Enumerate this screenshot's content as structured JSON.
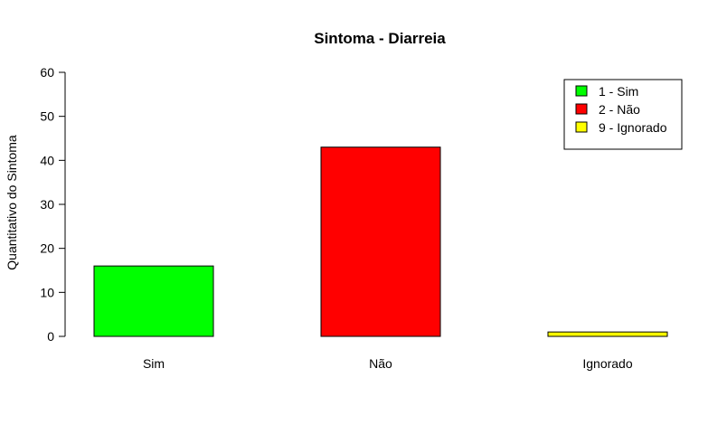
{
  "chart_data": {
    "type": "bar",
    "title": "Sintoma - Diarreia",
    "xlabel": "",
    "ylabel": "Quantitativo do Sintoma",
    "categories": [
      "Sim",
      "Não",
      "Ignorado"
    ],
    "values": [
      16,
      43,
      1
    ],
    "colors": [
      "#00ff00",
      "#ff0000",
      "#ffff00"
    ],
    "ylim": [
      0,
      60
    ],
    "yticks": [
      0,
      10,
      20,
      30,
      40,
      50,
      60
    ],
    "grid": false,
    "legend": {
      "position": "top-right",
      "entries": [
        {
          "label": "1 - Sim",
          "color": "#00ff00"
        },
        {
          "label": "2 - Não",
          "color": "#ff0000"
        },
        {
          "label": "9 - Ignorado",
          "color": "#ffff00"
        }
      ]
    }
  }
}
